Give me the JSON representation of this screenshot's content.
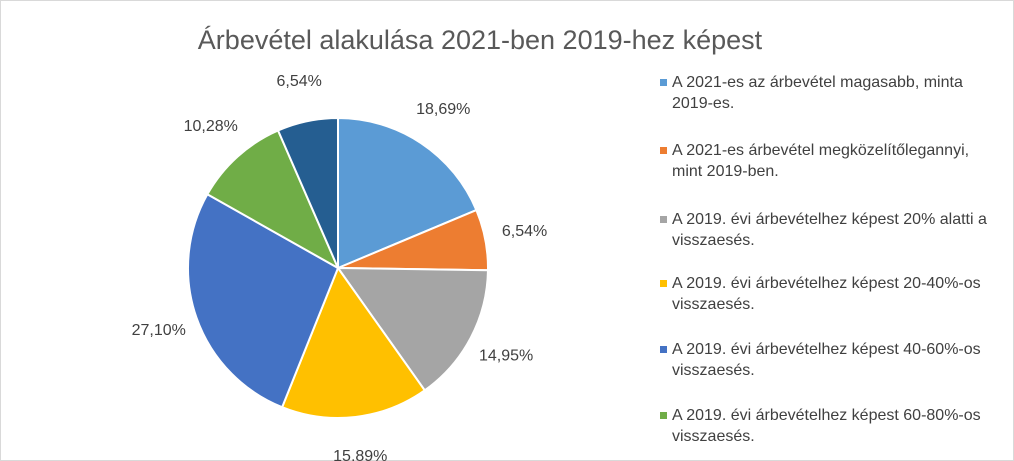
{
  "chart_data": {
    "type": "pie",
    "title": "Árbevétel alakulása 2021-ben 2019-hez képest",
    "categories": [
      "A 2021-es az árbevétel magasabb, minta 2019-es.",
      "A 2021-es árbevétel megközelítőlegannyi, mint 2019-ben.",
      "A 2019. évi árbevételhez képest 20% alatti a visszaesés.",
      "A 2019. évi árbevételhez képest 20-40%-os visszaesés.",
      "A 2019. évi árbevételhez képest 40-60%-os visszaesés.",
      "A 2019. évi árbevételhez képest 60-80%-os visszaesés.",
      null
    ],
    "values": [
      18.69,
      6.54,
      14.95,
      15.89,
      27.1,
      10.28,
      6.54
    ],
    "value_labels": [
      "18,69%",
      "6,54%",
      "14,95%",
      "15,89%",
      "27,10%",
      "10,28%",
      "6,54%"
    ],
    "colors": [
      "#5b9bd5",
      "#ed7d31",
      "#a5a5a5",
      "#ffc000",
      "#4472c4",
      "#70ad47",
      "#255e91"
    ],
    "legend": "right"
  }
}
